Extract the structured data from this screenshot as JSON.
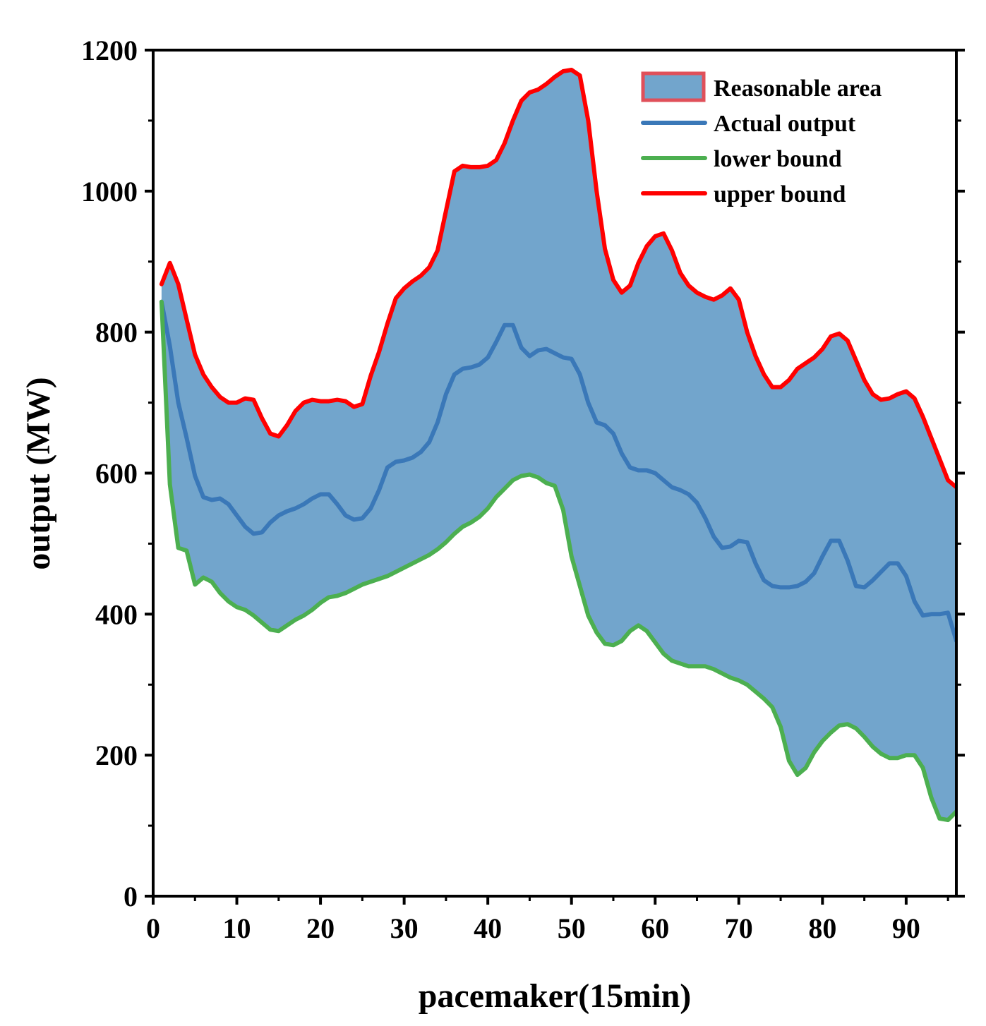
{
  "chart_data": {
    "type": "area",
    "title": "",
    "xlabel": "pacemaker(15min)",
    "ylabel": "output (MW)",
    "xlim": [
      0,
      96
    ],
    "ylim": [
      0,
      1200
    ],
    "xticks": [
      0,
      10,
      20,
      30,
      40,
      50,
      60,
      70,
      80,
      90
    ],
    "xtick_labels": [
      "0",
      "10",
      "20",
      "30",
      "40",
      "50",
      "60",
      "70",
      "80",
      "90"
    ],
    "yticks": [
      0,
      200,
      400,
      600,
      800,
      1000,
      1200
    ],
    "ytick_labels": [
      "0",
      "200",
      "400",
      "600",
      "800",
      "1000",
      "1200"
    ],
    "grid": false,
    "legend_position": "top-right",
    "x": [
      1,
      2,
      3,
      4,
      5,
      6,
      7,
      8,
      9,
      10,
      11,
      12,
      13,
      14,
      15,
      16,
      17,
      18,
      19,
      20,
      21,
      22,
      23,
      24,
      25,
      26,
      27,
      28,
      29,
      30,
      31,
      32,
      33,
      34,
      35,
      36,
      37,
      38,
      39,
      40,
      41,
      42,
      43,
      44,
      45,
      46,
      47,
      48,
      49,
      50,
      51,
      52,
      53,
      54,
      55,
      56,
      57,
      58,
      59,
      60,
      61,
      62,
      63,
      64,
      65,
      66,
      67,
      68,
      69,
      70,
      71,
      72,
      73,
      74,
      75,
      76,
      77,
      78,
      79,
      80,
      81,
      82,
      83,
      84,
      85,
      86,
      87,
      88,
      89,
      90,
      91,
      92,
      93,
      94,
      95,
      96
    ],
    "series": [
      {
        "name": "upper bound",
        "color": "#ff0000",
        "values": [
          868,
          898,
          868,
          818,
          768,
          740,
          722,
          708,
          700,
          700,
          706,
          704,
          678,
          656,
          652,
          668,
          688,
          700,
          704,
          702,
          702,
          704,
          702,
          694,
          698,
          738,
          772,
          812,
          848,
          862,
          872,
          880,
          892,
          916,
          972,
          1028,
          1036,
          1034,
          1034,
          1036,
          1044,
          1068,
          1100,
          1128,
          1140,
          1144,
          1152,
          1162,
          1170,
          1172,
          1164,
          1100,
          1000,
          918,
          874,
          856,
          866,
          898,
          922,
          936,
          940,
          916,
          884,
          866,
          856,
          850,
          846,
          852,
          862,
          846,
          800,
          766,
          740,
          722,
          722,
          732,
          748,
          756,
          764,
          776,
          794,
          798,
          788,
          760,
          732,
          712,
          704,
          706,
          712,
          716,
          706,
          680,
          650,
          620,
          590,
          580
        ]
      },
      {
        "name": "Actual output",
        "color": "#3a78b8",
        "values": [
          843,
          780,
          700,
          650,
          596,
          566,
          562,
          564,
          556,
          540,
          524,
          514,
          516,
          530,
          540,
          546,
          550,
          556,
          564,
          570,
          570,
          556,
          540,
          534,
          536,
          550,
          576,
          608,
          616,
          618,
          622,
          630,
          644,
          672,
          712,
          740,
          748,
          750,
          754,
          764,
          786,
          810,
          810,
          778,
          766,
          774,
          776,
          770,
          764,
          762,
          740,
          700,
          672,
          668,
          656,
          628,
          608,
          604,
          604,
          600,
          590,
          580,
          576,
          570,
          558,
          536,
          510,
          494,
          496,
          504,
          502,
          472,
          448,
          440,
          438,
          438,
          440,
          446,
          458,
          482,
          504,
          504,
          476,
          440,
          438,
          448,
          460,
          472,
          472,
          454,
          418,
          398,
          400,
          400,
          402,
          362
        ]
      },
      {
        "name": "lower bound",
        "color": "#4caf50",
        "values": [
          843,
          584,
          494,
          490,
          442,
          452,
          446,
          430,
          418,
          410,
          406,
          398,
          388,
          378,
          376,
          384,
          392,
          398,
          406,
          416,
          424,
          426,
          430,
          436,
          442,
          446,
          450,
          454,
          460,
          466,
          472,
          478,
          484,
          492,
          502,
          514,
          524,
          530,
          538,
          550,
          566,
          578,
          590,
          596,
          598,
          594,
          586,
          582,
          548,
          482,
          440,
          398,
          374,
          358,
          356,
          362,
          376,
          384,
          376,
          360,
          344,
          334,
          330,
          326,
          326,
          326,
          322,
          316,
          310,
          306,
          300,
          290,
          280,
          268,
          240,
          192,
          172,
          182,
          204,
          220,
          232,
          242,
          244,
          238,
          226,
          212,
          202,
          196,
          196,
          200,
          200,
          182,
          140,
          110,
          108,
          120
        ]
      }
    ],
    "band": {
      "name": "Reasonable area",
      "color": "#72a5cc",
      "between": [
        "lower bound",
        "upper bound"
      ]
    },
    "legend": [
      "Reasonable area",
      "Actual output",
      "lower bound",
      "upper bound"
    ]
  }
}
